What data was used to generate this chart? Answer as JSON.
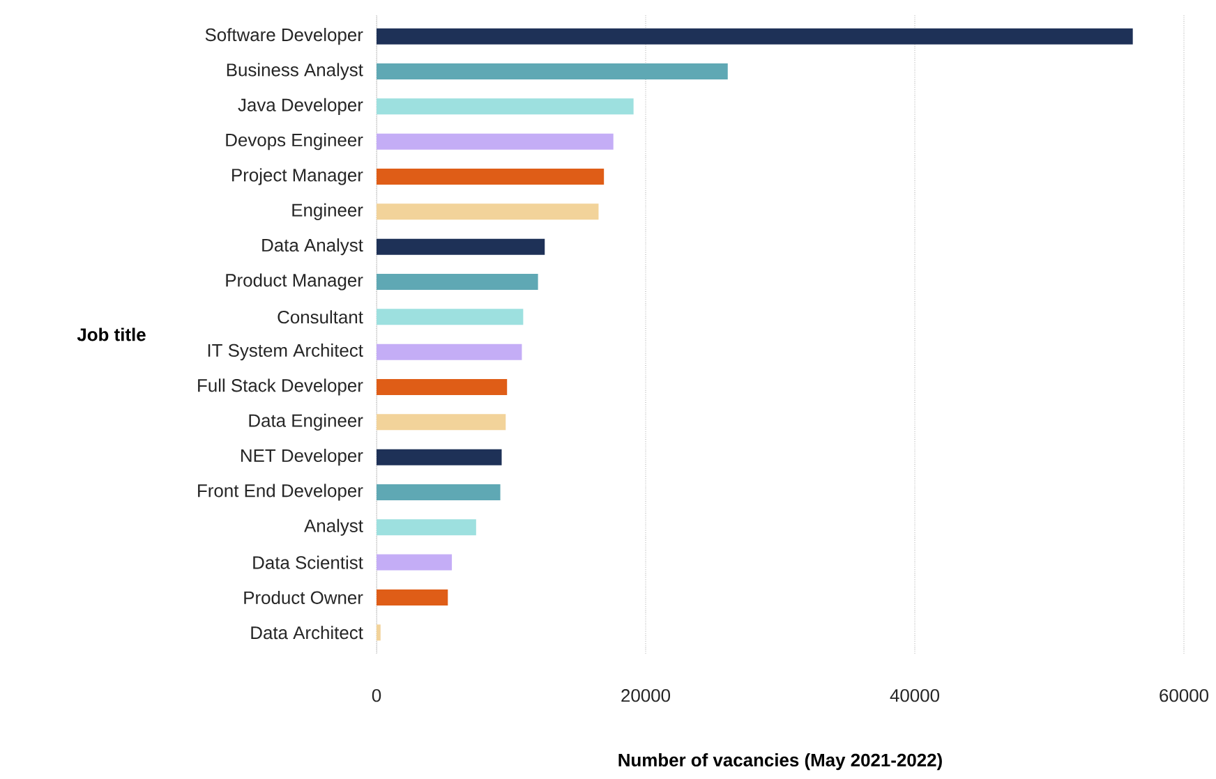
{
  "chart_data": {
    "type": "bar",
    "orientation": "horizontal",
    "xlabel": "Number of vacancies (May 2021-2022)",
    "ylabel": "Job title",
    "categories": [
      "Software Developer",
      "Business Analyst",
      "Java Developer",
      "Devops Engineer",
      "Project Manager",
      "Engineer",
      "Data Analyst",
      "Product Manager",
      "Consultant",
      "IT System Architect",
      "Full Stack Developer",
      "Data Engineer",
      "NET Developer",
      "Front End Developer",
      "Analyst",
      "Data Scientist",
      "Product Owner",
      "Data Architect"
    ],
    "values": [
      56200,
      26100,
      19100,
      17600,
      16900,
      16500,
      12500,
      12000,
      10900,
      10800,
      9700,
      9600,
      9300,
      9200,
      7400,
      5600,
      5300,
      300
    ],
    "colors": [
      "#1e3157",
      "#5fa8b4",
      "#9de0df",
      "#c4adf6",
      "#df5d17",
      "#f2d39a",
      "#1e3157",
      "#5fa8b4",
      "#9de0df",
      "#c4adf6",
      "#df5d17",
      "#f2d39a",
      "#1e3157",
      "#5fa8b4",
      "#9de0df",
      "#c4adf6",
      "#df5d17",
      "#f2d39a"
    ],
    "xlim": [
      0,
      60000
    ],
    "xticks": [
      0,
      20000,
      40000,
      60000
    ],
    "grid": "x"
  }
}
